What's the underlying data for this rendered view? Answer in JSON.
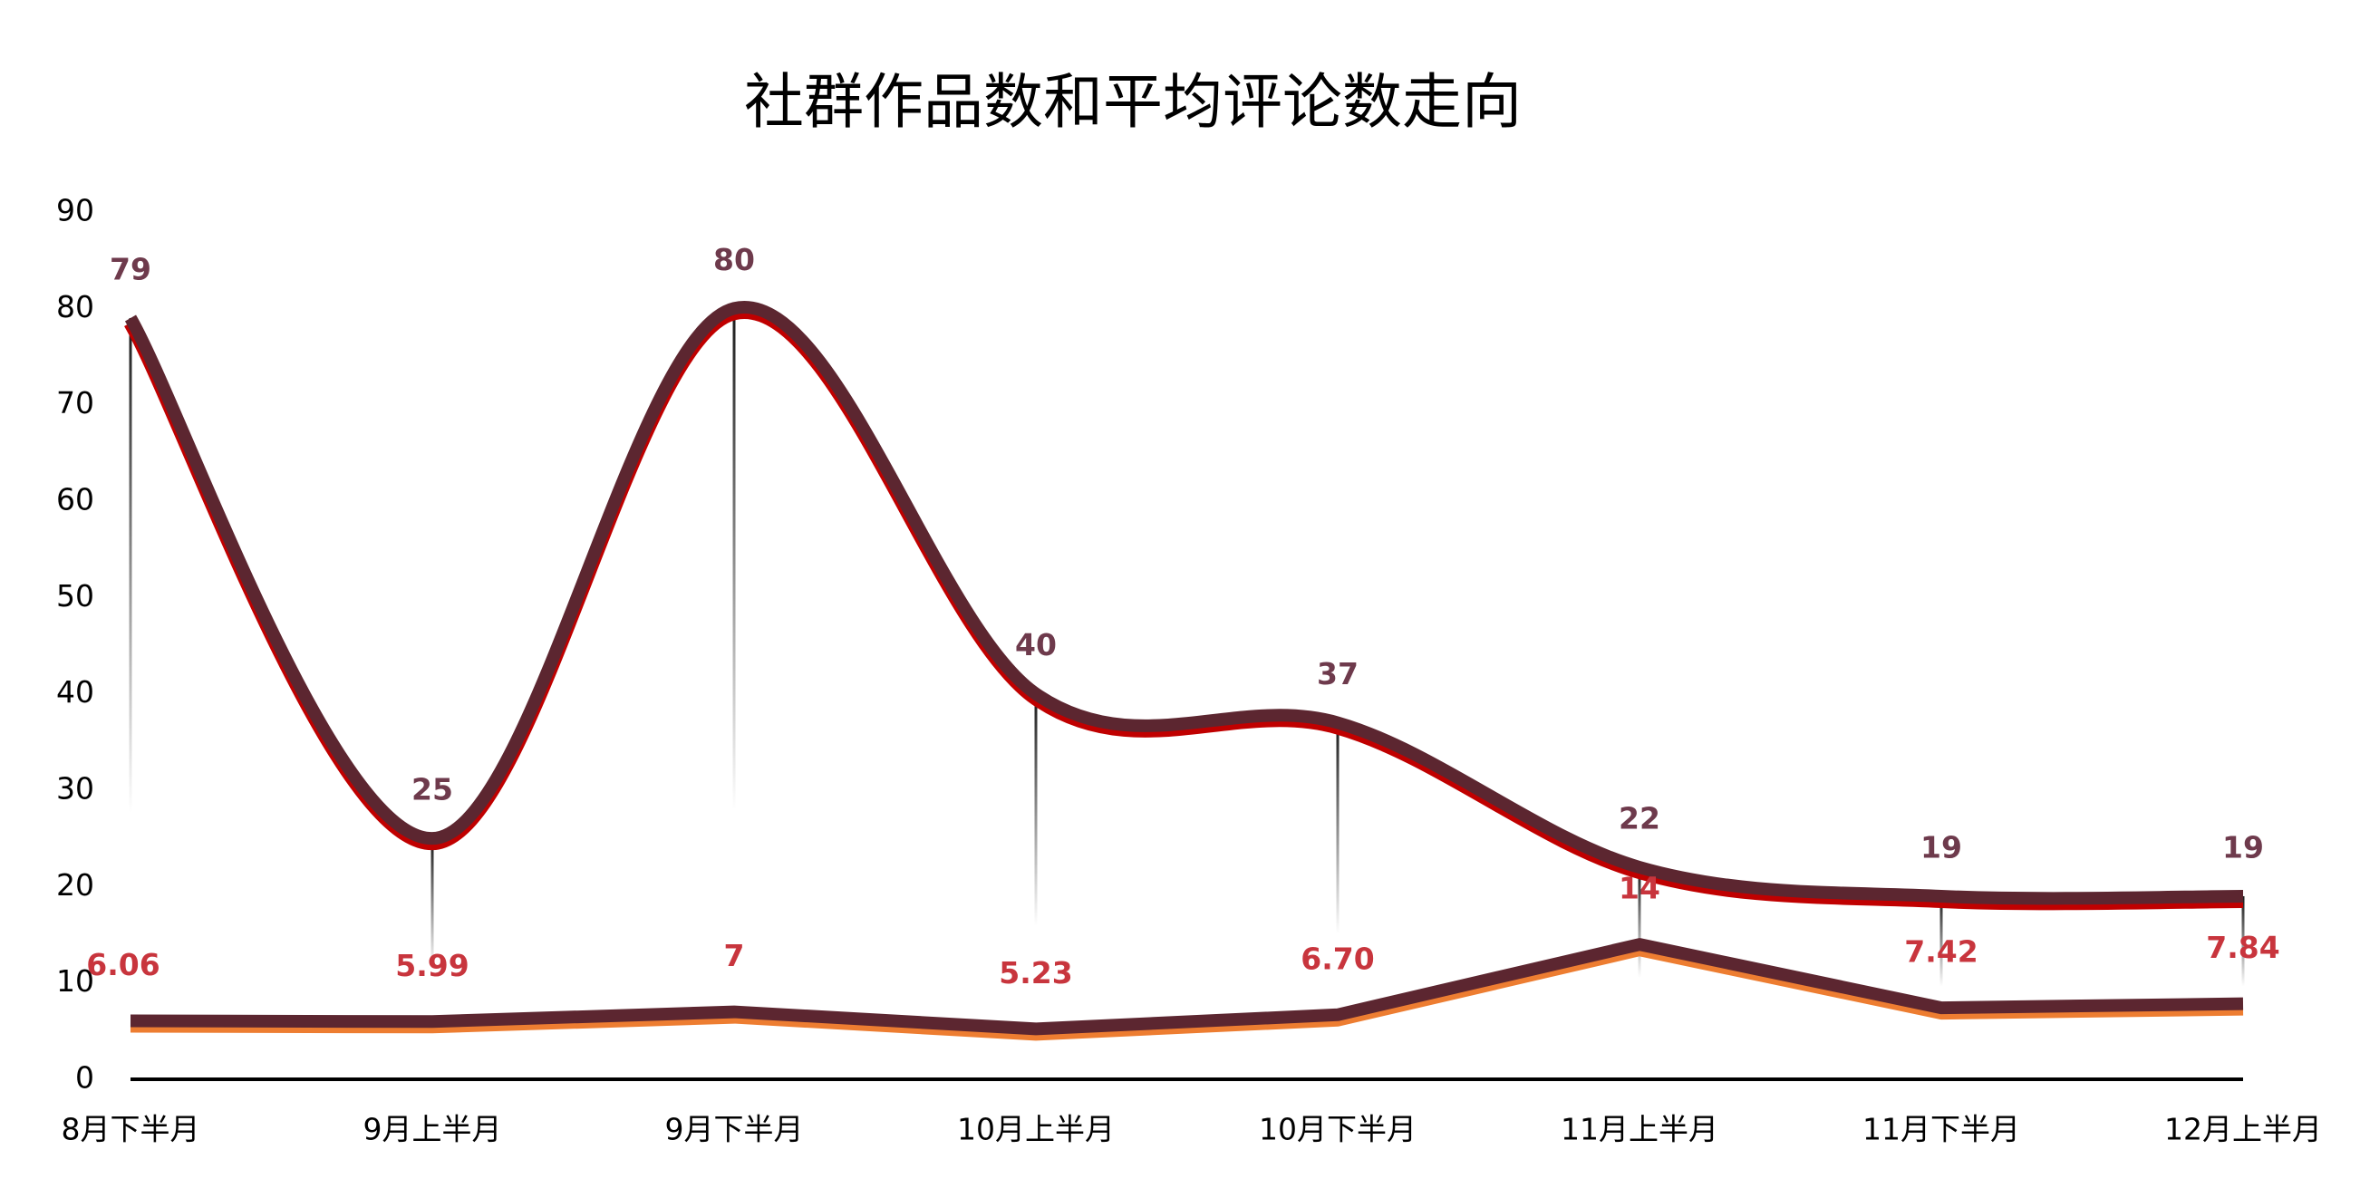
{
  "chart_data": {
    "type": "line",
    "title": "社群作品数和平均评论数走向",
    "categories": [
      "8月下半月",
      "9月上半月",
      "9月下半月",
      "10月上半月",
      "10月下半月",
      "11月上半月",
      "11月下半月",
      "12月上半月"
    ],
    "series": [
      {
        "color": "#5c2630",
        "edge_color": "#c00000",
        "label_color": "#6e3a4c",
        "smooth": true,
        "values": [
          79,
          25,
          80,
          40,
          37,
          22,
          19,
          19
        ]
      },
      {
        "color": "#5c2630",
        "edge_color": "#ed7d31",
        "label_color": "#c8353d",
        "smooth": false,
        "values": [
          6.06,
          5.99,
          7,
          5.23,
          6.7,
          14,
          7.42,
          7.84
        ],
        "value_labels": [
          "6.06",
          "5.99",
          "7",
          "5.23",
          "6.70",
          "14",
          "7.42",
          "7.84"
        ]
      }
    ],
    "ylim": [
      0,
      90
    ],
    "yticks": [
      0,
      10,
      20,
      30,
      40,
      50,
      60,
      70,
      80,
      90
    ]
  }
}
